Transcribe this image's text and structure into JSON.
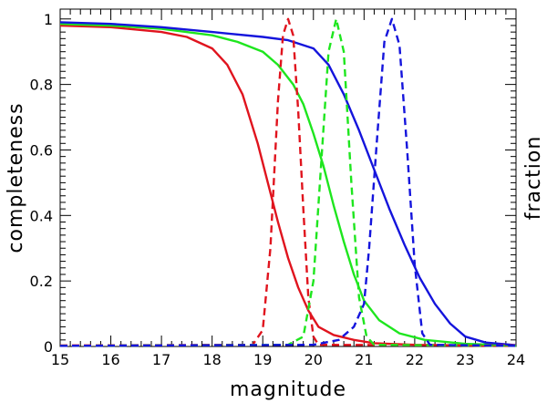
{
  "chart_data": {
    "type": "line",
    "xlabel": "magnitude",
    "ylabel": "completeness",
    "y2label": "fraction",
    "xlim": [
      15,
      24
    ],
    "ylim": [
      0,
      1.03
    ],
    "xticks": [
      15,
      16,
      17,
      18,
      19,
      20,
      21,
      22,
      23,
      24
    ],
    "yticks": [
      0,
      0.2,
      0.4,
      0.6,
      0.8,
      1
    ],
    "ytick_labels": [
      "0",
      "0.2",
      "0.4",
      "0.6",
      "0.8",
      "1"
    ],
    "grid": false,
    "series": [
      {
        "name": "completeness-red",
        "style": "solid",
        "color": "#e0141e",
        "x": [
          15,
          16,
          17,
          17.5,
          18,
          18.3,
          18.6,
          18.9,
          19.1,
          19.3,
          19.5,
          19.7,
          19.9,
          20.1,
          20.4,
          20.8,
          21.2,
          22,
          23,
          24
        ],
        "y": [
          0.98,
          0.975,
          0.96,
          0.945,
          0.91,
          0.86,
          0.77,
          0.62,
          0.5,
          0.38,
          0.27,
          0.18,
          0.11,
          0.06,
          0.035,
          0.02,
          0.01,
          0.005,
          0.003,
          0.002
        ]
      },
      {
        "name": "completeness-green",
        "style": "solid",
        "color": "#1ee61e",
        "x": [
          15,
          16,
          17,
          18,
          18.5,
          19,
          19.3,
          19.6,
          19.8,
          20,
          20.2,
          20.4,
          20.6,
          20.8,
          21,
          21.3,
          21.7,
          22.2,
          23,
          24
        ],
        "y": [
          0.985,
          0.98,
          0.97,
          0.95,
          0.93,
          0.9,
          0.86,
          0.8,
          0.74,
          0.65,
          0.55,
          0.43,
          0.32,
          0.22,
          0.14,
          0.08,
          0.04,
          0.02,
          0.008,
          0.003
        ]
      },
      {
        "name": "completeness-blue",
        "style": "solid",
        "color": "#1414dc",
        "x": [
          15,
          16,
          17,
          18,
          19,
          19.5,
          20,
          20.3,
          20.6,
          20.9,
          21.2,
          21.5,
          21.8,
          22.1,
          22.4,
          22.7,
          23,
          23.4,
          24
        ],
        "y": [
          0.99,
          0.985,
          0.975,
          0.96,
          0.945,
          0.935,
          0.91,
          0.86,
          0.77,
          0.66,
          0.54,
          0.42,
          0.31,
          0.21,
          0.13,
          0.07,
          0.03,
          0.012,
          0.004
        ]
      },
      {
        "name": "fraction-red",
        "style": "dashed",
        "color": "#e0141e",
        "x": [
          15,
          18.8,
          19,
          19.15,
          19.3,
          19.4,
          19.5,
          19.6,
          19.7,
          19.8,
          19.9,
          20,
          20.1,
          24
        ],
        "y": [
          0.003,
          0.005,
          0.05,
          0.3,
          0.75,
          0.95,
          1.0,
          0.95,
          0.72,
          0.42,
          0.15,
          0.03,
          0.005,
          0.003
        ]
      },
      {
        "name": "fraction-green",
        "style": "dashed",
        "color": "#1ee61e",
        "x": [
          15,
          19.5,
          19.8,
          20,
          20.15,
          20.3,
          20.45,
          20.6,
          20.75,
          20.9,
          21.05,
          21.2,
          24
        ],
        "y": [
          0.002,
          0.005,
          0.03,
          0.2,
          0.55,
          0.9,
          1.0,
          0.9,
          0.5,
          0.15,
          0.03,
          0.005,
          0.002
        ]
      },
      {
        "name": "fraction-blue",
        "style": "dashed",
        "color": "#1414dc",
        "x": [
          15,
          20,
          20.5,
          20.8,
          21,
          21.1,
          21.25,
          21.4,
          21.55,
          21.7,
          21.85,
          22,
          22.15,
          22.3,
          24
        ],
        "y": [
          0.002,
          0.005,
          0.02,
          0.06,
          0.13,
          0.3,
          0.62,
          0.93,
          1.0,
          0.92,
          0.6,
          0.25,
          0.04,
          0.005,
          0.002
        ]
      }
    ]
  }
}
